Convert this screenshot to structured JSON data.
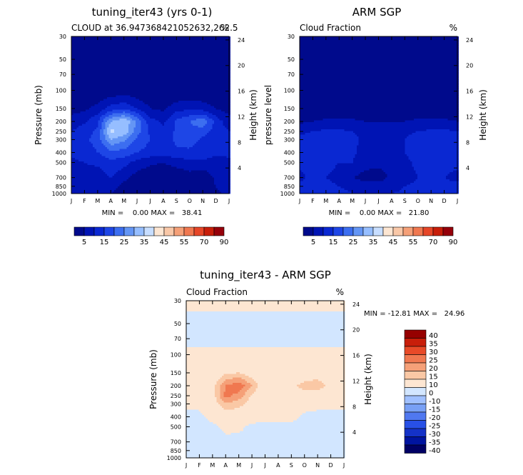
{
  "months": [
    "J",
    "F",
    "M",
    "A",
    "M",
    "J",
    "J",
    "A",
    "S",
    "O",
    "N",
    "D",
    "J"
  ],
  "pressure_ticks": [
    "30",
    "50",
    "70",
    "100",
    "150",
    "200",
    "250",
    "300",
    "400",
    "500",
    "700",
    "850",
    "1000"
  ],
  "pressure_values": [
    30,
    50,
    70,
    100,
    150,
    200,
    250,
    300,
    400,
    500,
    700,
    850,
    1000
  ],
  "height_ticks": [
    "24",
    "20",
    "16",
    "12",
    "8",
    "4"
  ],
  "height_values": [
    24,
    20,
    16,
    12,
    8,
    4
  ],
  "colors": {
    "seq": [
      "#000a8c",
      "#0014b4",
      "#0a28d2",
      "#1e46e6",
      "#3c6ef0",
      "#6496f5",
      "#96beff",
      "#c8deff",
      "#fde6d2",
      "#f9c8a8",
      "#f5a078",
      "#f07850",
      "#e64628",
      "#c81e0a",
      "#96000a"
    ],
    "diverging": [
      "#000064",
      "#0014a0",
      "#1432c8",
      "#2850e6",
      "#5078f0",
      "#78a0f5",
      "#a0c0ff",
      "#d2e6ff",
      "#fde6d2",
      "#fac8a5",
      "#f5a078",
      "#f07850",
      "#e84a28",
      "#c81e0a",
      "#960000"
    ]
  },
  "panels": [
    {
      "title": "tuning_iter43 (yrs 0-1)",
      "subtitle": "CLOUD at 36.947368421052632,262.5",
      "units": "%",
      "ylabel_left": "Pressure (mb)",
      "ylabel_right": "Height (km)",
      "minmax": "MIN =    0.00 MAX =   38.41"
    },
    {
      "title": "ARM SGP",
      "subtitle": "Cloud Fraction",
      "units": "%",
      "ylabel_left": "pressure level",
      "ylabel_right": "Height (km)",
      "minmax": "MIN =    0.00 MAX =   21.80"
    },
    {
      "title": "tuning_iter43 - ARM SGP",
      "subtitle": "Cloud Fraction",
      "units": "%",
      "ylabel_left": "Pressure (mb)",
      "ylabel_right": "Height (km)",
      "minmax": "MIN = -12.81 MAX =   24.96"
    }
  ],
  "colorbar_seq_labels": [
    "5",
    "15",
    "25",
    "35",
    "45",
    "55",
    "70",
    "90"
  ],
  "colorbar_div_labels": [
    "40",
    "35",
    "30",
    "25",
    "20",
    "15",
    "10",
    "0",
    "-10",
    "-15",
    "-20",
    "-25",
    "-30",
    "-35",
    "-40"
  ],
  "chart_data": [
    {
      "type": "heatmap",
      "title": "tuning_iter43 (yrs 0-1)",
      "subtitle": "CLOUD at 36.947368421052632,262.5",
      "xlabel": "",
      "ylabel": "Pressure (mb)",
      "ylabel_right": "Height (km)",
      "x": [
        "J",
        "F",
        "M",
        "A",
        "M",
        "J",
        "J",
        "A",
        "S",
        "O",
        "N",
        "D",
        "J"
      ],
      "y": [
        30,
        50,
        70,
        100,
        150,
        200,
        250,
        300,
        400,
        500,
        700,
        850,
        1000
      ],
      "ylim": [
        30,
        1000
      ],
      "yscale": "log-pressure",
      "min": 0.0,
      "max": 38.41,
      "units": "%",
      "values": [
        [
          0,
          0,
          0,
          0,
          0,
          0,
          0,
          0,
          0,
          0,
          0,
          0,
          0
        ],
        [
          0,
          0,
          0,
          0,
          0,
          0,
          0,
          0,
          0,
          0,
          0,
          0,
          0
        ],
        [
          0,
          0,
          0,
          0,
          0,
          0,
          0,
          0,
          0,
          0,
          0,
          0,
          0
        ],
        [
          0,
          0,
          0,
          1,
          2,
          1,
          0,
          0,
          0,
          0,
          0,
          0,
          0
        ],
        [
          3,
          4,
          7,
          12,
          14,
          10,
          5,
          4,
          8,
          9,
          8,
          5,
          3
        ],
        [
          7,
          9,
          14,
          30,
          35,
          24,
          12,
          9,
          16,
          20,
          24,
          13,
          7
        ],
        [
          10,
          13,
          16,
          36,
          34,
          22,
          14,
          11,
          16,
          19,
          17,
          13,
          10
        ],
        [
          13,
          14,
          17,
          30,
          26,
          19,
          15,
          13,
          16,
          17,
          14,
          13,
          13
        ],
        [
          11,
          12,
          15,
          18,
          18,
          15,
          13,
          12,
          14,
          14,
          13,
          11,
          11
        ],
        [
          9,
          10,
          11,
          14,
          12,
          8,
          6,
          5,
          7,
          8,
          9,
          8,
          9
        ],
        [
          9,
          8,
          7,
          10,
          6,
          3,
          1,
          1,
          1,
          3,
          1,
          6,
          9
        ],
        [
          8,
          7,
          6,
          6,
          4,
          3,
          3,
          3,
          3,
          3,
          3,
          5,
          8
        ],
        [
          6,
          5,
          5,
          5,
          4,
          3,
          3,
          3,
          3,
          3,
          3,
          4,
          6
        ]
      ]
    },
    {
      "type": "heatmap",
      "title": "ARM SGP",
      "subtitle": "Cloud Fraction",
      "xlabel": "",
      "ylabel": "pressure level",
      "ylabel_right": "Height (km)",
      "x": [
        "J",
        "F",
        "M",
        "A",
        "M",
        "J",
        "J",
        "A",
        "S",
        "O",
        "N",
        "D",
        "J"
      ],
      "y": [
        30,
        50,
        70,
        100,
        150,
        200,
        250,
        300,
        400,
        500,
        700,
        850,
        1000
      ],
      "ylim": [
        30,
        1000
      ],
      "yscale": "log-pressure",
      "min": 0.0,
      "max": 21.8,
      "units": "%",
      "values": [
        [
          0,
          0,
          0,
          0,
          0,
          0,
          0,
          0,
          0,
          0,
          0,
          0,
          0
        ],
        [
          0,
          0,
          0,
          0,
          0,
          0,
          0,
          0,
          0,
          0,
          0,
          0,
          0
        ],
        [
          0,
          0,
          0,
          0,
          0,
          0,
          0,
          0,
          0,
          0,
          0,
          0,
          0
        ],
        [
          0,
          0,
          0,
          0,
          0,
          0,
          0,
          0,
          0,
          0,
          0,
          0,
          0
        ],
        [
          1,
          1,
          1,
          1,
          1,
          1,
          1,
          1,
          1,
          1,
          1,
          1,
          1
        ],
        [
          4,
          5,
          6,
          6,
          6,
          5,
          5,
          5,
          5,
          6,
          6,
          6,
          5
        ],
        [
          9,
          10,
          11,
          11,
          10,
          9,
          8,
          8,
          9,
          10,
          11,
          11,
          10
        ],
        [
          11,
          13,
          12,
          12,
          11,
          9,
          8,
          8,
          10,
          12,
          12,
          12,
          11
        ],
        [
          13,
          14,
          13,
          12,
          11,
          8,
          7,
          7,
          10,
          12,
          14,
          12,
          12
        ],
        [
          11,
          12,
          11,
          10,
          10,
          7,
          6,
          6,
          9,
          11,
          12,
          11,
          11
        ],
        [
          9,
          11,
          10,
          9,
          5,
          3,
          3,
          6,
          8,
          10,
          10,
          10,
          9
        ],
        [
          11,
          12,
          11,
          10,
          9,
          7,
          7,
          8,
          10,
          11,
          11,
          11,
          11
        ],
        [
          13,
          14,
          12,
          11,
          10,
          9,
          9,
          10,
          11,
          12,
          12,
          13,
          13
        ]
      ]
    },
    {
      "type": "heatmap",
      "title": "tuning_iter43 - ARM SGP",
      "subtitle": "Cloud Fraction",
      "xlabel": "",
      "ylabel": "Pressure (mb)",
      "ylabel_right": "Height (km)",
      "x": [
        "J",
        "F",
        "M",
        "A",
        "M",
        "J",
        "J",
        "A",
        "S",
        "O",
        "N",
        "D",
        "J"
      ],
      "y": [
        30,
        50,
        70,
        100,
        150,
        200,
        250,
        300,
        400,
        500,
        700,
        850,
        1000
      ],
      "ylim": [
        30,
        1000
      ],
      "yscale": "log-pressure",
      "min": -12.81,
      "max": 24.96,
      "units": "%",
      "values": [
        [
          2,
          2,
          2,
          2,
          2,
          2,
          2,
          2,
          2,
          2,
          2,
          2,
          2
        ],
        [
          -2,
          -2,
          -2,
          -2,
          -2,
          -2,
          -2,
          -2,
          -2,
          -2,
          -2,
          -2,
          -2
        ],
        [
          -2,
          -2,
          -2,
          -2,
          -2,
          -2,
          -2,
          -2,
          -2,
          -2,
          -2,
          -2,
          -2
        ],
        [
          2,
          2,
          2,
          2,
          2,
          2,
          2,
          2,
          2,
          2,
          2,
          2,
          2
        ],
        [
          2,
          3,
          3,
          9,
          10,
          6,
          2,
          2,
          3,
          5,
          5,
          2,
          2
        ],
        [
          3,
          4,
          8,
          20,
          24,
          15,
          4,
          3,
          9,
          12,
          15,
          6,
          3
        ],
        [
          3,
          5,
          7,
          22,
          18,
          9,
          4,
          3,
          6,
          8,
          5,
          3,
          3
        ],
        [
          2,
          2,
          6,
          14,
          12,
          7,
          4,
          3,
          4,
          4,
          3,
          2,
          2
        ],
        [
          -3,
          -2,
          3,
          5,
          6,
          4,
          3,
          2,
          3,
          -2,
          -3,
          -3,
          -3
        ],
        [
          -3,
          -3,
          -2,
          2,
          2,
          -2,
          -3,
          -2,
          -3,
          -3,
          -4,
          -3,
          -3
        ],
        [
          -2,
          -3,
          -4,
          -2,
          -3,
          -3,
          -4,
          -3,
          -5,
          -4,
          -6,
          -3,
          -2
        ],
        [
          -2,
          -3,
          -4,
          -6,
          -3,
          -3,
          -3,
          -3,
          -4,
          -4,
          -5,
          -3,
          -2
        ],
        [
          -3,
          -4,
          -5,
          -5,
          -3,
          -3,
          -3,
          -3,
          -4,
          -4,
          -5,
          -4,
          -3
        ]
      ]
    }
  ]
}
